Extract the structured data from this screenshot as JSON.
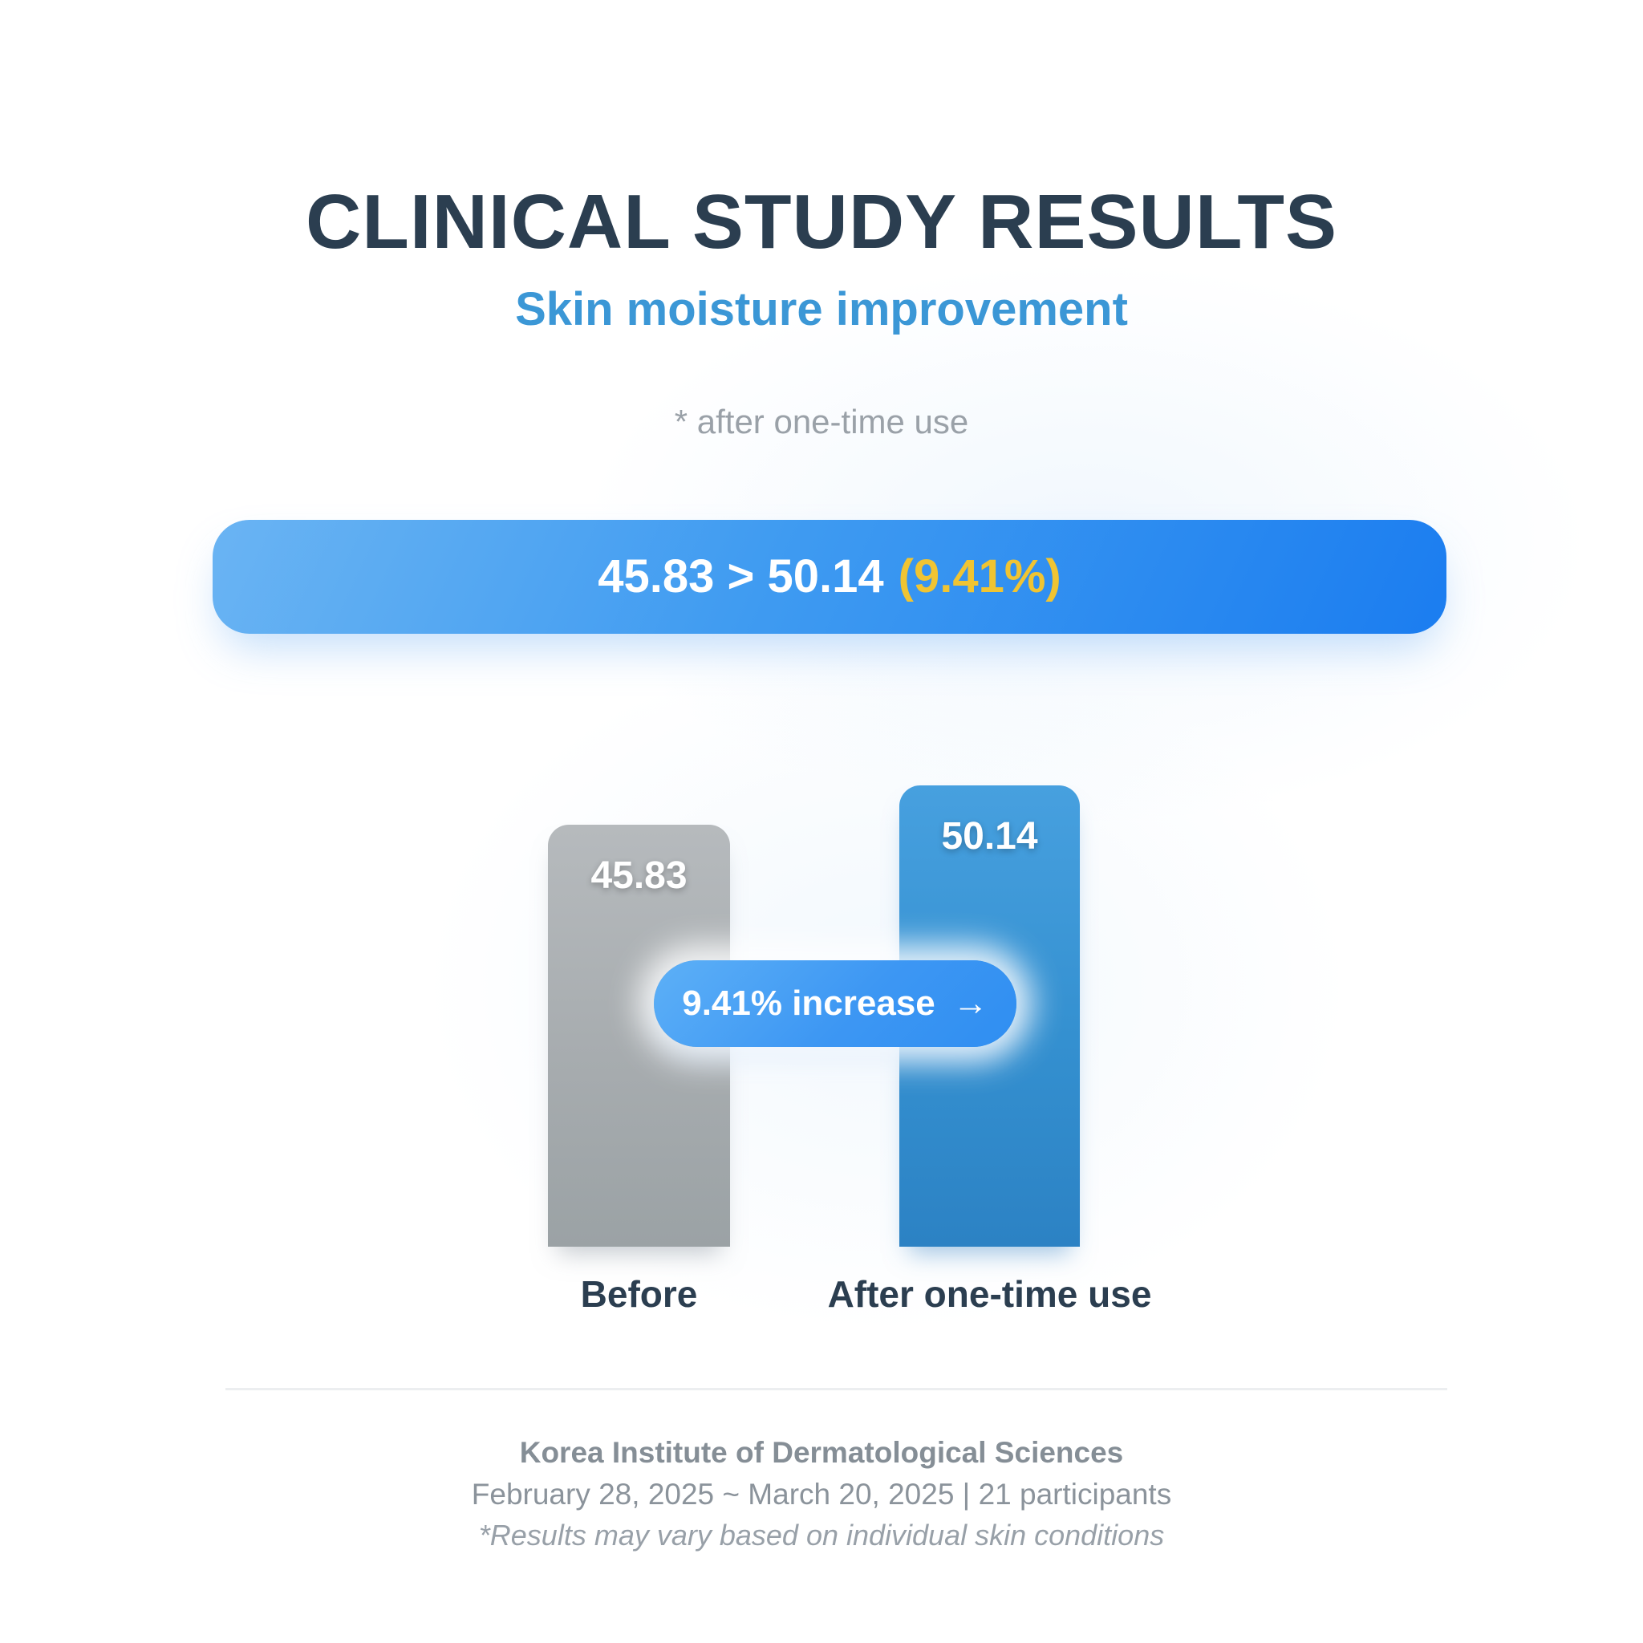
{
  "page": {
    "title": "CLINICAL STUDY RESULTS",
    "subtitle": "Skin moisture improvement",
    "note": "* after one-time use"
  },
  "banner": {
    "values_text": "45.83 > 50.14",
    "percent_text": "(9.41%)"
  },
  "chart_data": {
    "type": "bar",
    "categories": [
      "Before",
      "After one-time use"
    ],
    "values": [
      45.83,
      50.14
    ],
    "value_labels": [
      "45.83",
      "50.14"
    ],
    "increase_badge": "9.41% increase",
    "increase_arrow": "→",
    "increase_percent": 9.41,
    "ylim": [
      0,
      50.14
    ],
    "grid": "off",
    "legend": "none",
    "bar_colors": [
      "#a7acaf",
      "#3490d0"
    ]
  },
  "footer": {
    "institute": "Korea Institute of Dermatological Sciences",
    "period": "February 28, 2025 ~ March 20, 2025 | 21 participants",
    "disclaimer": "*Results may vary based on individual skin conditions"
  },
  "colors": {
    "title": "#2b3e50",
    "accent_blue": "#3b97d6",
    "banner_gradient_start": "#6ab4f3",
    "banner_gradient_end": "#1b7df0",
    "highlight_yellow": "#f0c432",
    "bar_gray": "#a7acaf",
    "bar_blue": "#3490d0",
    "footer_gray": "#8b939b"
  }
}
